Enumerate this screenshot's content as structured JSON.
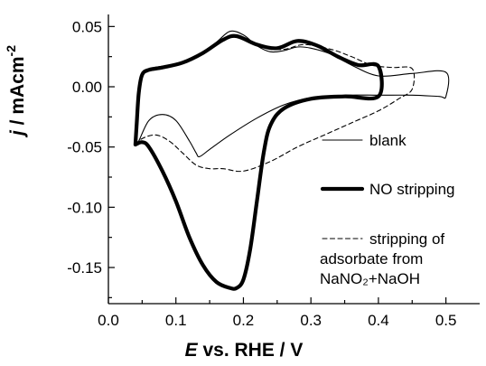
{
  "chart_data": {
    "type": "line",
    "title": "",
    "xlabel": {
      "italic": "E",
      "rest": " vs. RHE / V"
    },
    "ylabel": {
      "italic": "j",
      "rest": " / mAcm",
      "sup": "-2"
    },
    "xlim": [
      0.0,
      0.55
    ],
    "ylim": [
      -0.18,
      0.06
    ],
    "x_ticks": [
      {
        "value": 0.0,
        "label": "0.0"
      },
      {
        "value": 0.1,
        "label": "0.1"
      },
      {
        "value": 0.2,
        "label": "0.2"
      },
      {
        "value": 0.3,
        "label": "0.3"
      },
      {
        "value": 0.4,
        "label": "0.4"
      },
      {
        "value": 0.5,
        "label": "0.5"
      }
    ],
    "y_ticks": [
      {
        "value": 0.05,
        "label": "0.05"
      },
      {
        "value": 0.0,
        "label": "0.00"
      },
      {
        "value": -0.05,
        "label": "-0.05"
      },
      {
        "value": -0.1,
        "label": "-0.10"
      },
      {
        "value": -0.15,
        "label": "-0.15"
      }
    ],
    "grid": false,
    "legend_position": "right",
    "series": [
      {
        "name": "blank",
        "style": "thin",
        "points": [
          [
            0.04,
            -0.048
          ],
          [
            0.045,
            -0.045
          ],
          [
            0.06,
            -0.028
          ],
          [
            0.08,
            -0.023
          ],
          [
            0.1,
            -0.028
          ],
          [
            0.12,
            -0.045
          ],
          [
            0.13,
            -0.055
          ],
          [
            0.135,
            -0.058
          ],
          [
            0.15,
            -0.052
          ],
          [
            0.18,
            -0.04
          ],
          [
            0.22,
            -0.026
          ],
          [
            0.26,
            -0.015
          ],
          [
            0.3,
            -0.009
          ],
          [
            0.35,
            -0.007
          ],
          [
            0.4,
            -0.007
          ],
          [
            0.45,
            -0.007
          ],
          [
            0.49,
            -0.008
          ],
          [
            0.5,
            -0.008
          ],
          [
            0.5,
            0.012
          ],
          [
            0.45,
            0.011
          ],
          [
            0.4,
            0.009
          ],
          [
            0.36,
            0.018
          ],
          [
            0.33,
            0.027
          ],
          [
            0.3,
            0.032
          ],
          [
            0.28,
            0.033
          ],
          [
            0.26,
            0.03
          ],
          [
            0.24,
            0.029
          ],
          [
            0.22,
            0.034
          ],
          [
            0.2,
            0.043
          ],
          [
            0.18,
            0.046
          ],
          [
            0.16,
            0.037
          ],
          [
            0.13,
            0.025
          ],
          [
            0.1,
            0.019
          ],
          [
            0.07,
            0.016
          ],
          [
            0.05,
            0.011
          ],
          [
            0.045,
            -0.005
          ],
          [
            0.042,
            -0.03
          ],
          [
            0.04,
            -0.048
          ]
        ]
      },
      {
        "name": "NO stripping",
        "style": "thick",
        "points": [
          [
            0.04,
            -0.048
          ],
          [
            0.05,
            -0.046
          ],
          [
            0.06,
            -0.05
          ],
          [
            0.08,
            -0.07
          ],
          [
            0.1,
            -0.095
          ],
          [
            0.12,
            -0.125
          ],
          [
            0.14,
            -0.148
          ],
          [
            0.16,
            -0.162
          ],
          [
            0.18,
            -0.167
          ],
          [
            0.19,
            -0.167
          ],
          [
            0.2,
            -0.16
          ],
          [
            0.21,
            -0.135
          ],
          [
            0.22,
            -0.095
          ],
          [
            0.23,
            -0.055
          ],
          [
            0.24,
            -0.032
          ],
          [
            0.26,
            -0.018
          ],
          [
            0.3,
            -0.01
          ],
          [
            0.35,
            -0.008
          ],
          [
            0.4,
            -0.008
          ],
          [
            0.4,
            0.017
          ],
          [
            0.37,
            0.018
          ],
          [
            0.34,
            0.025
          ],
          [
            0.31,
            0.034
          ],
          [
            0.28,
            0.038
          ],
          [
            0.25,
            0.032
          ],
          [
            0.22,
            0.035
          ],
          [
            0.19,
            0.042
          ],
          [
            0.17,
            0.039
          ],
          [
            0.14,
            0.028
          ],
          [
            0.11,
            0.02
          ],
          [
            0.08,
            0.016
          ],
          [
            0.06,
            0.014
          ],
          [
            0.05,
            0.01
          ],
          [
            0.045,
            -0.005
          ],
          [
            0.042,
            -0.03
          ],
          [
            0.04,
            -0.048
          ]
        ]
      },
      {
        "name": "stripping of adsorbate from NaNO2+NaOH",
        "style": "dashed",
        "points": [
          [
            0.04,
            -0.048
          ],
          [
            0.05,
            -0.043
          ],
          [
            0.07,
            -0.04
          ],
          [
            0.09,
            -0.045
          ],
          [
            0.11,
            -0.055
          ],
          [
            0.13,
            -0.065
          ],
          [
            0.15,
            -0.068
          ],
          [
            0.17,
            -0.068
          ],
          [
            0.2,
            -0.07
          ],
          [
            0.24,
            -0.062
          ],
          [
            0.28,
            -0.05
          ],
          [
            0.32,
            -0.04
          ],
          [
            0.36,
            -0.03
          ],
          [
            0.4,
            -0.02
          ],
          [
            0.43,
            -0.01
          ],
          [
            0.45,
            -0.002
          ],
          [
            0.45,
            0.015
          ],
          [
            0.42,
            0.016
          ],
          [
            0.39,
            0.018
          ],
          [
            0.36,
            0.025
          ],
          [
            0.33,
            0.031
          ],
          [
            0.29,
            0.035
          ],
          [
            0.26,
            0.031
          ],
          [
            0.23,
            0.033
          ],
          [
            0.2,
            0.04
          ],
          [
            0.18,
            0.042
          ],
          [
            0.15,
            0.032
          ],
          [
            0.12,
            0.022
          ],
          [
            0.09,
            0.018
          ],
          [
            0.06,
            0.015
          ],
          [
            0.05,
            0.01
          ],
          [
            0.045,
            -0.01
          ],
          [
            0.042,
            -0.035
          ],
          [
            0.04,
            -0.048
          ]
        ]
      }
    ],
    "legend": [
      {
        "series": "blank",
        "lines": [
          "blank"
        ]
      },
      {
        "series": "NO stripping",
        "lines": [
          "NO stripping"
        ]
      },
      {
        "series": "stripping of adsorbate from NaNO2+NaOH",
        "lines": [
          "stripping of",
          "adsorbate from",
          "NaNO₂+NaOH"
        ]
      }
    ]
  }
}
